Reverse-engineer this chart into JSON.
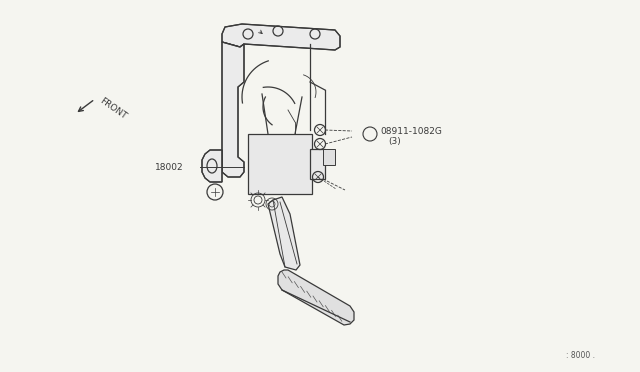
{
  "bg_color": "#f5f5f0",
  "line_color": "#3a3a3a",
  "text_color": "#3a3a3a",
  "label_18002": "18002",
  "label_part": "08911-1082G",
  "label_qty": "(3)",
  "label_front": "FRONT",
  "label_ref": ": 8000 .",
  "fig_width": 6.4,
  "fig_height": 3.72,
  "dpi": 100
}
